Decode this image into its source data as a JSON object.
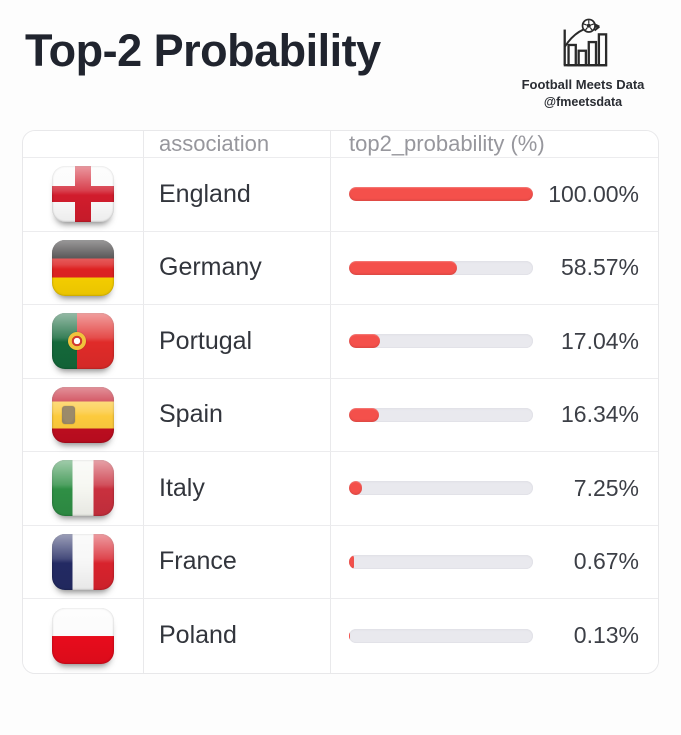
{
  "page": {
    "title": "Top-2 Probability"
  },
  "brand": {
    "icon": "bar-chart-football-icon",
    "name": "Football Meets Data",
    "handle": "@fmeetsdata"
  },
  "table": {
    "columns": [
      {
        "label": ""
      },
      {
        "label": "association"
      },
      {
        "label": "top2_probability (%)"
      }
    ],
    "rows": [
      {
        "flag": "england",
        "association": "England",
        "value": 100.0,
        "display": "100.00%"
      },
      {
        "flag": "germany",
        "association": "Germany",
        "value": 58.57,
        "display": "58.57%"
      },
      {
        "flag": "portugal",
        "association": "Portugal",
        "value": 17.04,
        "display": "17.04%"
      },
      {
        "flag": "spain",
        "association": "Spain",
        "value": 16.34,
        "display": "16.34%"
      },
      {
        "flag": "italy",
        "association": "Italy",
        "value": 7.25,
        "display": "7.25%"
      },
      {
        "flag": "france",
        "association": "France",
        "value": 0.67,
        "display": "0.67%"
      },
      {
        "flag": "poland",
        "association": "Poland",
        "value": 0.13,
        "display": "0.13%"
      }
    ]
  },
  "chart_data": {
    "type": "bar",
    "title": "Top-2 Probability",
    "categories": [
      "England",
      "Germany",
      "Portugal",
      "Spain",
      "Italy",
      "France",
      "Poland"
    ],
    "values": [
      100.0,
      58.57,
      17.04,
      16.34,
      7.25,
      0.67,
      0.13
    ],
    "xlabel": "association",
    "ylabel": "top2_probability (%)",
    "ylim": [
      0,
      100
    ],
    "grid": false,
    "legend_position": "none",
    "orientation": "horizontal-bars-in-table"
  },
  "colors": {
    "bar_fill": "#f4504b",
    "bar_track": "#e9e9ee",
    "header_bg": "#f1f1f3",
    "title_color": "#20242e"
  }
}
